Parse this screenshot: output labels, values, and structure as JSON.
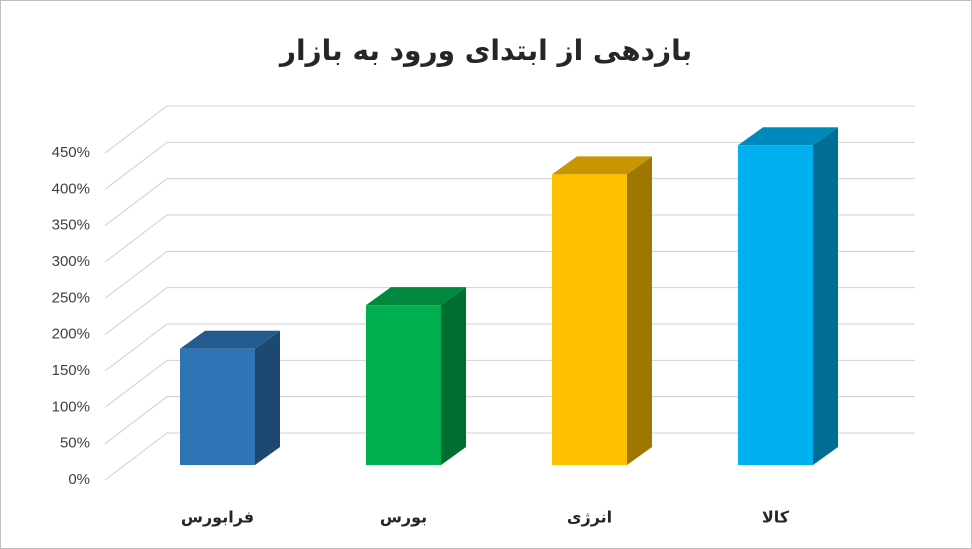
{
  "chart_data": {
    "type": "bar3d",
    "title": "بازدهی از ابتدای ورود به بازار",
    "categories": [
      "فرابورس",
      "بورس",
      "انرژی",
      "کالا"
    ],
    "series": [
      {
        "values": [
          160,
          220,
          400,
          440
        ],
        "colors": [
          "#2e75b6",
          "#00b050",
          "#ffc000",
          "#00b0f0"
        ]
      }
    ],
    "ylim": [
      0,
      450
    ],
    "yticks": [
      {
        "value": 0,
        "label": "0%"
      },
      {
        "value": 50,
        "label": "50%"
      },
      {
        "value": 100,
        "label": "100%"
      },
      {
        "value": 150,
        "label": "150%"
      },
      {
        "value": 200,
        "label": "200%"
      },
      {
        "value": 250,
        "label": "250%"
      },
      {
        "value": 300,
        "label": "300%"
      },
      {
        "value": 350,
        "label": "350%"
      },
      {
        "value": 400,
        "label": "400%"
      },
      {
        "value": 450,
        "label": "450%"
      }
    ],
    "grid": true
  }
}
